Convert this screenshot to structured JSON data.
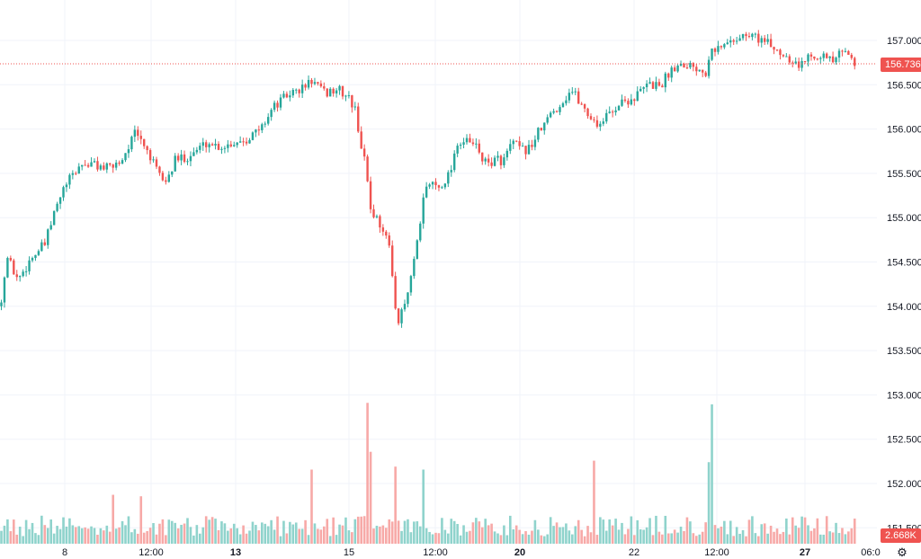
{
  "chart_data": {
    "type": "candlestick",
    "y_ticks": [
      "157.000",
      "156.500",
      "156.000",
      "155.500",
      "155.000",
      "154.500",
      "154.000",
      "153.500",
      "153.000",
      "152.500",
      "152.000",
      "151.500"
    ],
    "x_ticks": [
      {
        "label": "8",
        "bold": false
      },
      {
        "label": "12:00",
        "bold": false
      },
      {
        "label": "13",
        "bold": true
      },
      {
        "label": "15",
        "bold": false
      },
      {
        "label": "12:00",
        "bold": false
      },
      {
        "label": "20",
        "bold": true
      },
      {
        "label": "22",
        "bold": false
      },
      {
        "label": "12:00",
        "bold": false
      },
      {
        "label": "27",
        "bold": true
      },
      {
        "label": "06:0",
        "bold": false
      }
    ],
    "ylim": [
      151.45,
      157.25
    ],
    "last_price": "156.736",
    "last_volume": "2.668K",
    "grid": true,
    "colors": {
      "up": "#26a69a",
      "down": "#ef5350",
      "up_volume": "#8fd3cc",
      "down_volume": "#f7a9a7"
    },
    "price_path": [
      [
        0,
        154.0
      ],
      [
        8,
        154.55
      ],
      [
        20,
        154.3
      ],
      [
        35,
        154.55
      ],
      [
        50,
        154.7
      ],
      [
        62,
        155.1
      ],
      [
        72,
        155.35
      ],
      [
        90,
        155.6
      ],
      [
        105,
        155.6
      ],
      [
        120,
        155.55
      ],
      [
        135,
        155.65
      ],
      [
        150,
        155.95
      ],
      [
        162,
        155.8
      ],
      [
        175,
        155.5
      ],
      [
        185,
        155.4
      ],
      [
        195,
        155.65
      ],
      [
        210,
        155.7
      ],
      [
        230,
        155.85
      ],
      [
        245,
        155.8
      ],
      [
        260,
        155.85
      ],
      [
        275,
        155.9
      ],
      [
        290,
        156.0
      ],
      [
        300,
        156.2
      ],
      [
        310,
        156.3
      ],
      [
        322,
        156.4
      ],
      [
        335,
        156.45
      ],
      [
        347,
        156.55
      ],
      [
        360,
        156.4
      ],
      [
        375,
        156.45
      ],
      [
        388,
        156.35
      ],
      [
        395,
        156.2
      ],
      [
        402,
        155.8
      ],
      [
        408,
        155.5
      ],
      [
        412,
        155.1
      ],
      [
        418,
        155.0
      ],
      [
        425,
        154.9
      ],
      [
        432,
        154.7
      ],
      [
        438,
        154.2
      ],
      [
        442,
        153.8
      ],
      [
        448,
        153.95
      ],
      [
        455,
        154.2
      ],
      [
        460,
        154.5
      ],
      [
        466,
        154.8
      ],
      [
        472,
        155.3
      ],
      [
        478,
        155.4
      ],
      [
        488,
        155.35
      ],
      [
        500,
        155.5
      ],
      [
        508,
        155.85
      ],
      [
        520,
        155.85
      ],
      [
        530,
        155.8
      ],
      [
        540,
        155.6
      ],
      [
        550,
        155.65
      ],
      [
        560,
        155.65
      ],
      [
        570,
        155.85
      ],
      [
        580,
        155.75
      ],
      [
        590,
        155.8
      ],
      [
        598,
        155.95
      ],
      [
        605,
        156.05
      ],
      [
        615,
        156.2
      ],
      [
        625,
        156.3
      ],
      [
        635,
        156.45
      ],
      [
        645,
        156.3
      ],
      [
        655,
        156.15
      ],
      [
        665,
        156.05
      ],
      [
        675,
        156.15
      ],
      [
        690,
        156.3
      ],
      [
        705,
        156.35
      ],
      [
        720,
        156.5
      ],
      [
        735,
        156.5
      ],
      [
        748,
        156.7
      ],
      [
        760,
        156.75
      ],
      [
        775,
        156.7
      ],
      [
        785,
        156.65
      ],
      [
        790,
        156.95
      ],
      [
        800,
        156.9
      ],
      [
        812,
        157.0
      ],
      [
        825,
        157.05
      ],
      [
        840,
        157.05
      ],
      [
        855,
        156.95
      ],
      [
        870,
        156.85
      ],
      [
        880,
        156.8
      ],
      [
        890,
        156.7
      ],
      [
        900,
        156.85
      ],
      [
        912,
        156.85
      ],
      [
        925,
        156.75
      ],
      [
        935,
        156.85
      ],
      [
        945,
        156.85
      ],
      [
        952,
        156.74
      ]
    ],
    "volume_spikes": [
      [
        408,
        0.95
      ],
      [
        412,
        0.62
      ],
      [
        440,
        0.52
      ],
      [
        472,
        0.5
      ],
      [
        662,
        0.56
      ],
      [
        792,
        0.94
      ],
      [
        788,
        0.55
      ],
      [
        345,
        0.5
      ],
      [
        125,
        0.33
      ],
      [
        158,
        0.32
      ]
    ]
  },
  "icons": {
    "settings": "⚙"
  }
}
